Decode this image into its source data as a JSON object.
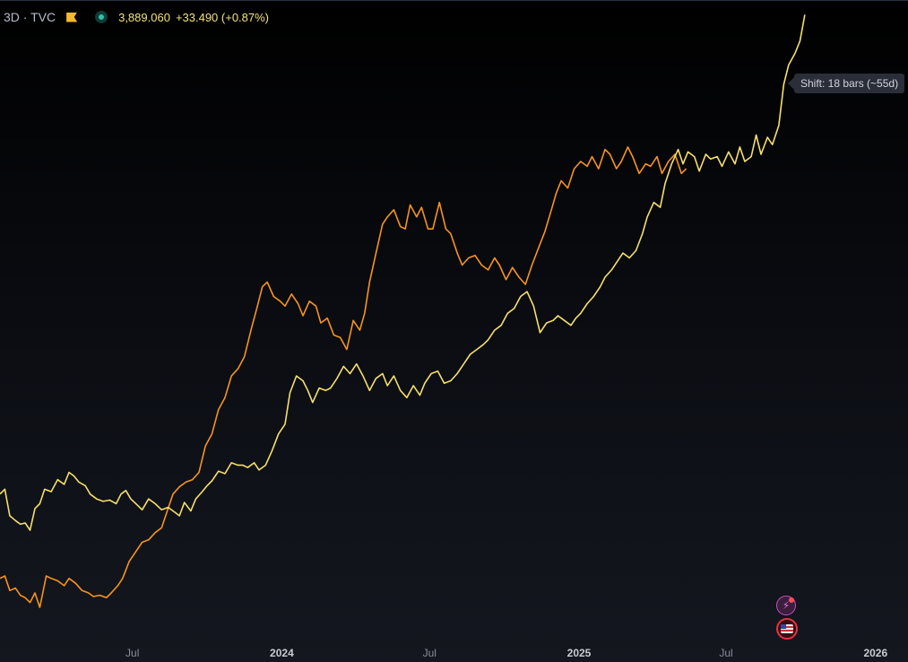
{
  "legend": {
    "symbol": "3D · TVC",
    "price": "3,889.060",
    "change": "+33.490 (+0.87%)",
    "price_color": "#f2e27a"
  },
  "tooltip": {
    "text": "Shift: 18 bars (~55d)"
  },
  "colors": {
    "shifted_series": "#f7941d",
    "main_series": "#f5e06b",
    "axis_text": "#8a8e99",
    "axis_text_bold": "#c9ccd3"
  },
  "icons": [
    "flag-icon",
    "status-dot-icon",
    "lightning-icon",
    "us-flag-icon"
  ],
  "chart_data": {
    "type": "line",
    "x_ticks": [
      "Jul",
      "2024",
      "Jul",
      "2025",
      "Jul",
      "2026"
    ],
    "x_tick_dates": [
      "2023-07-01",
      "2024-01-01",
      "2024-07-01",
      "2025-01-01",
      "2025-07-01",
      "2026-01-01"
    ],
    "x_range": [
      "2023-01-19",
      "2026-02-10"
    ],
    "y_range": [
      1300,
      3950
    ],
    "y_axis_visible": false,
    "grid": false,
    "series": [
      {
        "points": [
          [
            "2023-01-19",
            1900
          ],
          [
            "2023-01-25",
            1920
          ],
          [
            "2023-01-31",
            1810
          ],
          [
            "2023-02-07",
            1790
          ],
          [
            "2023-02-13",
            1775
          ],
          [
            "2023-02-19",
            1780
          ],
          [
            "2023-02-25",
            1750
          ],
          [
            "2023-03-03",
            1840
          ],
          [
            "2023-03-09",
            1860
          ],
          [
            "2023-03-15",
            1920
          ],
          [
            "2023-03-23",
            1910
          ],
          [
            "2023-03-31",
            1960
          ],
          [
            "2023-04-08",
            1940
          ],
          [
            "2023-04-14",
            1990
          ],
          [
            "2023-04-20",
            1975
          ],
          [
            "2023-04-26",
            1950
          ],
          [
            "2023-05-04",
            1935
          ],
          [
            "2023-05-10",
            1900
          ],
          [
            "2023-05-18",
            1880
          ],
          [
            "2023-05-26",
            1870
          ],
          [
            "2023-06-03",
            1875
          ],
          [
            "2023-06-11",
            1860
          ],
          [
            "2023-06-17",
            1900
          ],
          [
            "2023-06-23",
            1915
          ],
          [
            "2023-06-29",
            1880
          ],
          [
            "2023-07-07",
            1855
          ],
          [
            "2023-07-13",
            1835
          ],
          [
            "2023-07-21",
            1880
          ],
          [
            "2023-07-29",
            1860
          ],
          [
            "2023-08-06",
            1835
          ],
          [
            "2023-08-14",
            1845
          ],
          [
            "2023-08-22",
            1825
          ],
          [
            "2023-08-28",
            1810
          ],
          [
            "2023-09-03",
            1865
          ],
          [
            "2023-09-11",
            1830
          ],
          [
            "2023-09-17",
            1880
          ],
          [
            "2023-09-25",
            1910
          ],
          [
            "2023-10-01",
            1935
          ],
          [
            "2023-10-07",
            1955
          ],
          [
            "2023-10-15",
            1995
          ],
          [
            "2023-10-23",
            1985
          ],
          [
            "2023-10-31",
            2030
          ],
          [
            "2023-11-08",
            2020
          ],
          [
            "2023-11-14",
            2020
          ],
          [
            "2023-11-20",
            2010
          ],
          [
            "2023-11-28",
            2030
          ],
          [
            "2023-12-04",
            2000
          ],
          [
            "2023-12-12",
            2020
          ],
          [
            "2023-12-20",
            2080
          ],
          [
            "2023-12-28",
            2150
          ],
          [
            "2024-01-05",
            2190
          ],
          [
            "2024-01-11",
            2320
          ],
          [
            "2024-01-19",
            2390
          ],
          [
            "2024-01-27",
            2370
          ],
          [
            "2024-02-02",
            2330
          ],
          [
            "2024-02-08",
            2280
          ],
          [
            "2024-02-16",
            2340
          ],
          [
            "2024-02-24",
            2330
          ],
          [
            "2024-03-01",
            2340
          ],
          [
            "2024-03-09",
            2380
          ],
          [
            "2024-03-17",
            2430
          ],
          [
            "2024-03-25",
            2400
          ],
          [
            "2024-04-02",
            2440
          ],
          [
            "2024-04-10",
            2390
          ],
          [
            "2024-04-18",
            2330
          ],
          [
            "2024-04-26",
            2380
          ],
          [
            "2024-05-04",
            2400
          ],
          [
            "2024-05-10",
            2350
          ],
          [
            "2024-05-18",
            2390
          ],
          [
            "2024-05-26",
            2330
          ],
          [
            "2024-06-03",
            2300
          ],
          [
            "2024-06-11",
            2350
          ],
          [
            "2024-06-19",
            2310
          ],
          [
            "2024-06-25",
            2360
          ],
          [
            "2024-07-03",
            2400
          ],
          [
            "2024-07-11",
            2410
          ],
          [
            "2024-07-19",
            2360
          ],
          [
            "2024-07-27",
            2370
          ],
          [
            "2024-08-04",
            2400
          ],
          [
            "2024-08-12",
            2440
          ],
          [
            "2024-08-20",
            2480
          ],
          [
            "2024-08-28",
            2500
          ],
          [
            "2024-09-05",
            2520
          ],
          [
            "2024-09-11",
            2540
          ],
          [
            "2024-09-19",
            2580
          ],
          [
            "2024-09-27",
            2600
          ],
          [
            "2024-10-05",
            2650
          ],
          [
            "2024-10-13",
            2670
          ],
          [
            "2024-10-21",
            2720
          ],
          [
            "2024-10-29",
            2740
          ],
          [
            "2024-11-06",
            2680
          ],
          [
            "2024-11-14",
            2570
          ],
          [
            "2024-11-22",
            2610
          ],
          [
            "2024-11-30",
            2620
          ],
          [
            "2024-12-06",
            2640
          ],
          [
            "2024-12-14",
            2620
          ],
          [
            "2024-12-22",
            2600
          ],
          [
            "2024-12-28",
            2630
          ],
          [
            "2025-01-03",
            2650
          ],
          [
            "2025-01-11",
            2690
          ],
          [
            "2025-01-19",
            2720
          ],
          [
            "2025-01-27",
            2760
          ],
          [
            "2025-02-02",
            2800
          ],
          [
            "2025-02-10",
            2830
          ],
          [
            "2025-02-18",
            2870
          ],
          [
            "2025-02-24",
            2900
          ],
          [
            "2025-03-04",
            2880
          ],
          [
            "2025-03-12",
            2910
          ],
          [
            "2025-03-20",
            2980
          ],
          [
            "2025-03-26",
            3050
          ],
          [
            "2025-04-03",
            3110
          ],
          [
            "2025-04-11",
            3090
          ],
          [
            "2025-04-17",
            3190
          ],
          [
            "2025-04-25",
            3270
          ],
          [
            "2025-05-03",
            3330
          ],
          [
            "2025-05-09",
            3270
          ],
          [
            "2025-05-15",
            3320
          ],
          [
            "2025-05-23",
            3300
          ],
          [
            "2025-05-29",
            3240
          ],
          [
            "2025-06-06",
            3310
          ],
          [
            "2025-06-12",
            3290
          ],
          [
            "2025-06-20",
            3300
          ],
          [
            "2025-06-26",
            3260
          ],
          [
            "2025-07-04",
            3320
          ],
          [
            "2025-07-12",
            3270
          ],
          [
            "2025-07-18",
            3340
          ],
          [
            "2025-07-24",
            3280
          ],
          [
            "2025-08-01",
            3300
          ],
          [
            "2025-08-07",
            3390
          ],
          [
            "2025-08-13",
            3310
          ],
          [
            "2025-08-21",
            3380
          ],
          [
            "2025-08-27",
            3350
          ],
          [
            "2025-09-04",
            3430
          ],
          [
            "2025-09-10",
            3600
          ],
          [
            "2025-09-16",
            3680
          ],
          [
            "2025-09-24",
            3730
          ],
          [
            "2025-09-30",
            3780
          ],
          [
            "2025-10-06",
            3889
          ]
        ]
      },
      {
        "points": [
          [
            "2023-01-19",
            1550
          ],
          [
            "2023-01-25",
            1560
          ],
          [
            "2023-01-31",
            1500
          ],
          [
            "2023-02-07",
            1510
          ],
          [
            "2023-02-13",
            1480
          ],
          [
            "2023-02-19",
            1470
          ],
          [
            "2023-02-25",
            1450
          ],
          [
            "2023-03-03",
            1490
          ],
          [
            "2023-03-09",
            1430
          ],
          [
            "2023-03-17",
            1560
          ],
          [
            "2023-03-23",
            1550
          ],
          [
            "2023-03-31",
            1540
          ],
          [
            "2023-04-08",
            1520
          ],
          [
            "2023-04-14",
            1550
          ],
          [
            "2023-04-22",
            1530
          ],
          [
            "2023-04-30",
            1500
          ],
          [
            "2023-05-08",
            1490
          ],
          [
            "2023-05-14",
            1475
          ],
          [
            "2023-05-22",
            1480
          ],
          [
            "2023-05-30",
            1470
          ],
          [
            "2023-06-05",
            1490
          ],
          [
            "2023-06-13",
            1520
          ],
          [
            "2023-06-19",
            1550
          ],
          [
            "2023-06-27",
            1620
          ],
          [
            "2023-07-05",
            1660
          ],
          [
            "2023-07-13",
            1700
          ],
          [
            "2023-07-21",
            1710
          ],
          [
            "2023-07-29",
            1740
          ],
          [
            "2023-08-06",
            1760
          ],
          [
            "2023-08-12",
            1820
          ],
          [
            "2023-08-20",
            1900
          ],
          [
            "2023-08-28",
            1930
          ],
          [
            "2023-09-05",
            1950
          ],
          [
            "2023-09-13",
            1960
          ],
          [
            "2023-09-21",
            1990
          ],
          [
            "2023-09-29",
            2100
          ],
          [
            "2023-10-07",
            2150
          ],
          [
            "2023-10-15",
            2250
          ],
          [
            "2023-10-23",
            2300
          ],
          [
            "2023-10-31",
            2390
          ],
          [
            "2023-11-08",
            2420
          ],
          [
            "2023-11-16",
            2470
          ],
          [
            "2023-11-24",
            2580
          ],
          [
            "2023-12-02",
            2680
          ],
          [
            "2023-12-08",
            2760
          ],
          [
            "2023-12-14",
            2780
          ],
          [
            "2023-12-22",
            2720
          ],
          [
            "2023-12-30",
            2700
          ],
          [
            "2024-01-05",
            2680
          ],
          [
            "2024-01-13",
            2730
          ],
          [
            "2024-01-21",
            2690
          ],
          [
            "2024-01-27",
            2640
          ],
          [
            "2024-02-04",
            2700
          ],
          [
            "2024-02-12",
            2680
          ],
          [
            "2024-02-18",
            2610
          ],
          [
            "2024-02-26",
            2630
          ],
          [
            "2024-03-05",
            2560
          ],
          [
            "2024-03-13",
            2550
          ],
          [
            "2024-03-21",
            2500
          ],
          [
            "2024-03-29",
            2620
          ],
          [
            "2024-04-06",
            2580
          ],
          [
            "2024-04-12",
            2650
          ],
          [
            "2024-04-18",
            2780
          ],
          [
            "2024-04-26",
            2900
          ],
          [
            "2024-05-04",
            3020
          ],
          [
            "2024-05-10",
            3050
          ],
          [
            "2024-05-18",
            3080
          ],
          [
            "2024-05-26",
            3010
          ],
          [
            "2024-06-01",
            3000
          ],
          [
            "2024-06-07",
            3100
          ],
          [
            "2024-06-15",
            3050
          ],
          [
            "2024-06-21",
            3090
          ],
          [
            "2024-06-29",
            3000
          ],
          [
            "2024-07-05",
            3000
          ],
          [
            "2024-07-13",
            3110
          ],
          [
            "2024-07-21",
            3000
          ],
          [
            "2024-07-27",
            2980
          ],
          [
            "2024-08-04",
            2900
          ],
          [
            "2024-08-10",
            2850
          ],
          [
            "2024-08-18",
            2880
          ],
          [
            "2024-08-26",
            2890
          ],
          [
            "2024-09-03",
            2850
          ],
          [
            "2024-09-11",
            2830
          ],
          [
            "2024-09-19",
            2880
          ],
          [
            "2024-09-25",
            2850
          ],
          [
            "2024-10-03",
            2790
          ],
          [
            "2024-10-11",
            2840
          ],
          [
            "2024-10-19",
            2800
          ],
          [
            "2024-10-27",
            2770
          ],
          [
            "2024-11-04",
            2850
          ],
          [
            "2024-11-12",
            2920
          ],
          [
            "2024-11-20",
            2990
          ],
          [
            "2024-11-28",
            3080
          ],
          [
            "2024-12-04",
            3150
          ],
          [
            "2024-12-10",
            3200
          ],
          [
            "2024-12-18",
            3170
          ],
          [
            "2024-12-26",
            3250
          ],
          [
            "2025-01-03",
            3280
          ],
          [
            "2025-01-11",
            3260
          ],
          [
            "2025-01-17",
            3300
          ],
          [
            "2025-01-25",
            3250
          ],
          [
            "2025-02-02",
            3330
          ],
          [
            "2025-02-08",
            3310
          ],
          [
            "2025-02-16",
            3250
          ],
          [
            "2025-02-22",
            3280
          ],
          [
            "2025-03-02",
            3340
          ],
          [
            "2025-03-08",
            3300
          ],
          [
            "2025-03-16",
            3230
          ],
          [
            "2025-03-24",
            3270
          ],
          [
            "2025-03-30",
            3260
          ],
          [
            "2025-04-07",
            3300
          ],
          [
            "2025-04-13",
            3230
          ],
          [
            "2025-04-21",
            3280
          ],
          [
            "2025-04-29",
            3310
          ],
          [
            "2025-05-07",
            3230
          ],
          [
            "2025-05-13",
            3250
          ]
        ]
      }
    ]
  }
}
